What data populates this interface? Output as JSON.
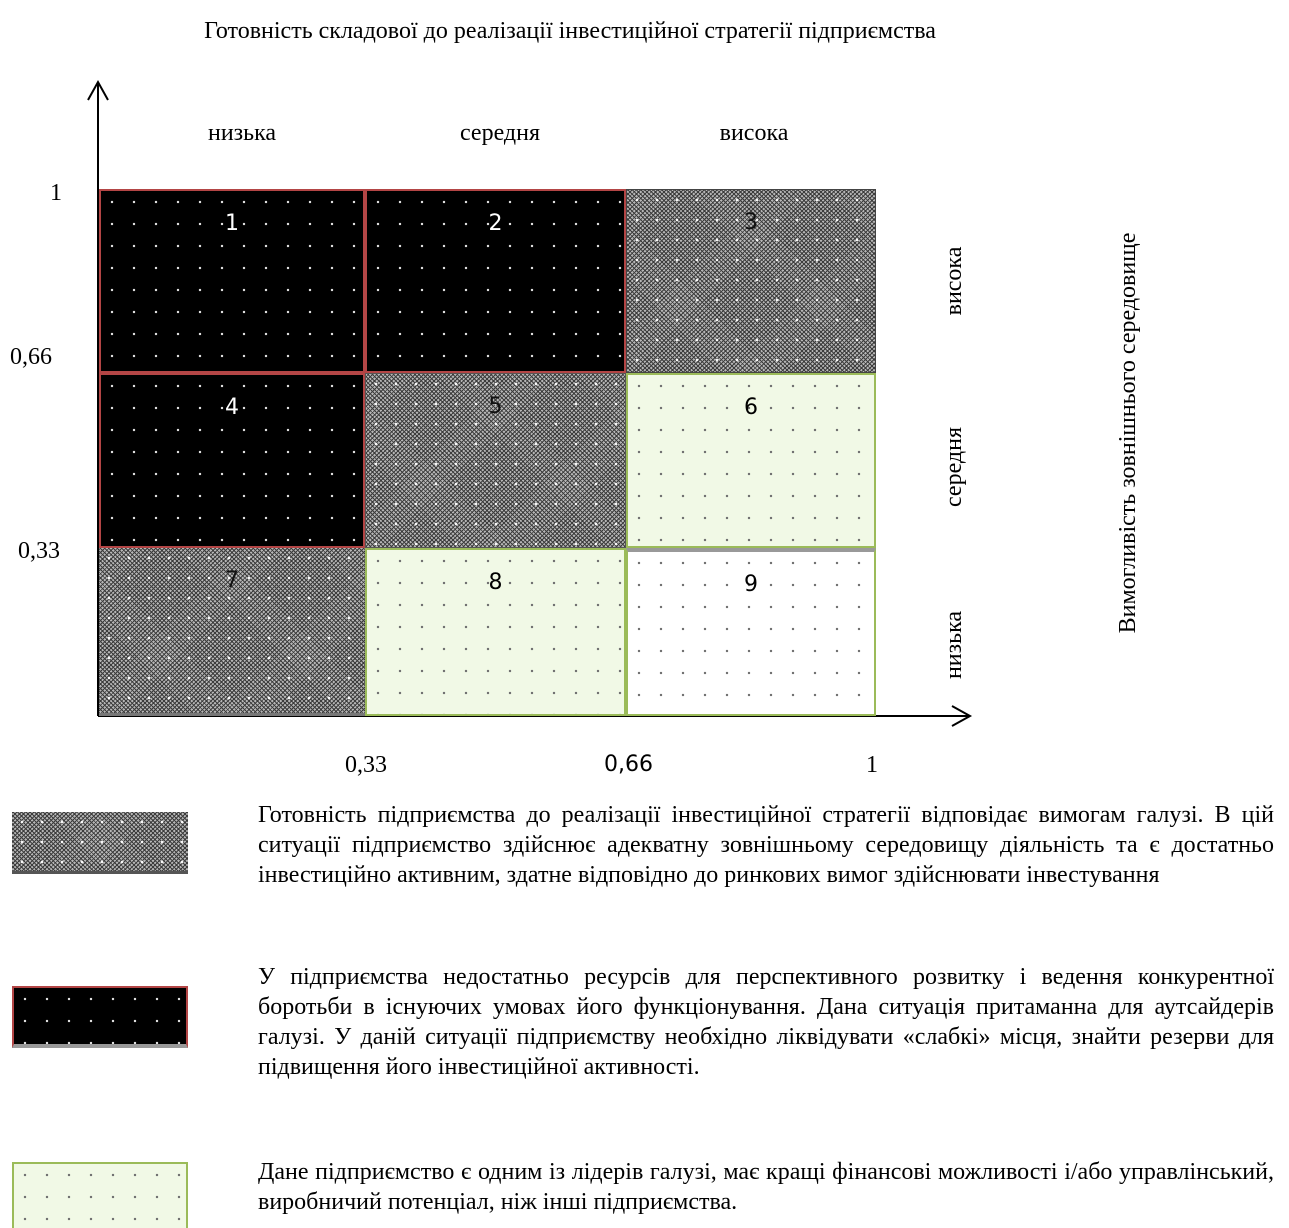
{
  "title": "Готовність складової до реалізації інвестиційної стратегії підприємства",
  "column_labels": [
    "низька",
    "середня",
    "висока"
  ],
  "row_labels": [
    "висока",
    "середня",
    "низька"
  ],
  "y_axis_label": "Вимогливість зовнішнього середовище",
  "y_ticks": [
    "1",
    "0,66",
    "0,33"
  ],
  "x_ticks": [
    "0,33",
    "0,66",
    "1"
  ],
  "cells": [
    {
      "num": "1",
      "fill": "black"
    },
    {
      "num": "2",
      "fill": "black"
    },
    {
      "num": "3",
      "fill": "gray"
    },
    {
      "num": "4",
      "fill": "black"
    },
    {
      "num": "5",
      "fill": "gray"
    },
    {
      "num": "6",
      "fill": "green"
    },
    {
      "num": "7",
      "fill": "gray"
    },
    {
      "num": "8",
      "fill": "green"
    },
    {
      "num": "9",
      "fill": "white"
    }
  ],
  "colors": {
    "black_cell": "#000000",
    "gray_cell": "#7a7a7a",
    "green_cell": "#f1f9e6",
    "red_border": "#b34545",
    "green_border": "#9bbb59"
  },
  "legend": [
    {
      "fill": "gray",
      "text": "Готовність підприємства до реалізації інвестиційної стратегії відповідає вимогам галузі. В цій ситуації підприємство здійснює адекватну зовнішньому середовищу діяльність та є достатньо інвестиційно активним, здатне відповідно до ринкових вимог здійснювати інвестування"
    },
    {
      "fill": "black",
      "text": "У підприємства недостатньо ресурсів для перспективного розвитку і ведення конкурентної боротьби в існуючих умовах його функціонування. Дана ситуація притаманна для аутсайдерів галузі. У даній ситуації підприємству необхідно ліквідувати «слабкі» місця, знайти резерви для підвищення його інвестиційної активності."
    },
    {
      "fill": "green",
      "text": "Дане підприємство є одним із лідерів галузі, має кращі фінансові можливості і/або управлінський, виробничий потенціал, ніж інші підприємства."
    }
  ]
}
